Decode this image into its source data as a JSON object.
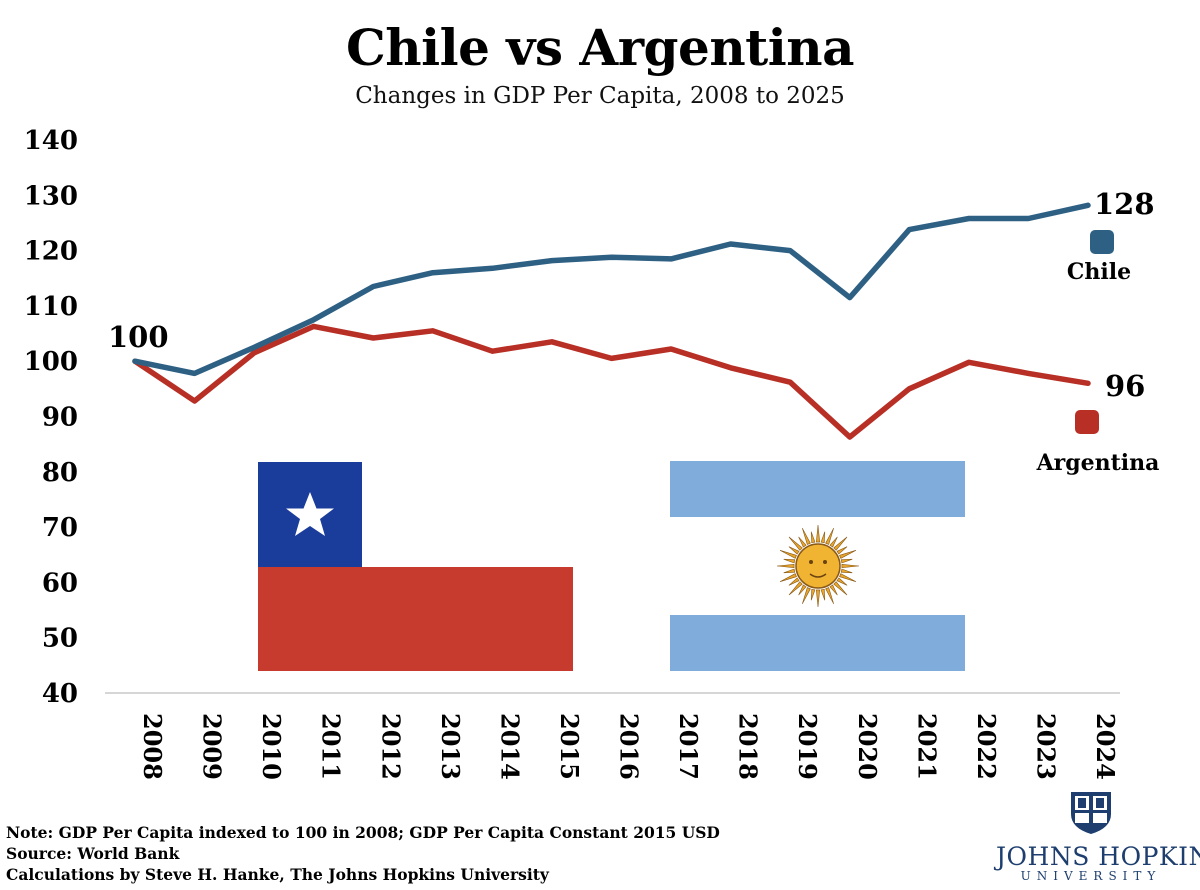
{
  "colors": {
    "chile": "#2e6084",
    "argentina": "#b82f25"
  },
  "chart_data": {
    "type": "line",
    "title": "Chile vs Argentina",
    "subtitle": "Changes in GDP Per Capita, 2008 to 2025",
    "x": [
      "2008",
      "2009",
      "2010",
      "2011",
      "2012",
      "2013",
      "2014",
      "2015",
      "2016",
      "2017",
      "2018",
      "2019",
      "2020",
      "2021",
      "2022",
      "2023",
      "2024"
    ],
    "ylim": [
      40,
      140
    ],
    "yticks": [
      "140",
      "130",
      "120",
      "110",
      "100",
      "90",
      "80",
      "70",
      "60",
      "50",
      "40"
    ],
    "series": [
      {
        "name": "Chile",
        "values": [
          100,
          97.8,
          102.5,
          107.5,
          113.5,
          116,
          116.8,
          118.2,
          118.8,
          118.5,
          121.2,
          120,
          111.5,
          123.8,
          125.8,
          125.8,
          128.2
        ]
      },
      {
        "name": "Argentina",
        "values": [
          100,
          92.8,
          101.5,
          106.3,
          104.2,
          105.5,
          101.8,
          103.5,
          100.5,
          102.2,
          98.8,
          96.2,
          86.3,
          95,
          99.8,
          97.8,
          96
        ]
      }
    ],
    "annotations": {
      "start": "100",
      "chile_end": "128",
      "argentina_end": "96"
    },
    "legend": [
      "Chile",
      "Argentina"
    ]
  },
  "notes": {
    "note": "Note: GDP Per Capita indexed to 100 in 2008; GDP Per Capita Constant 2015 USD",
    "source": "Source: World Bank",
    "calc": "Calculations by Steve H. Hanke, The Johns Hopkins University"
  },
  "logo": {
    "name": "JOHNS HOPKINS",
    "sub": "UNIVERSITY"
  }
}
